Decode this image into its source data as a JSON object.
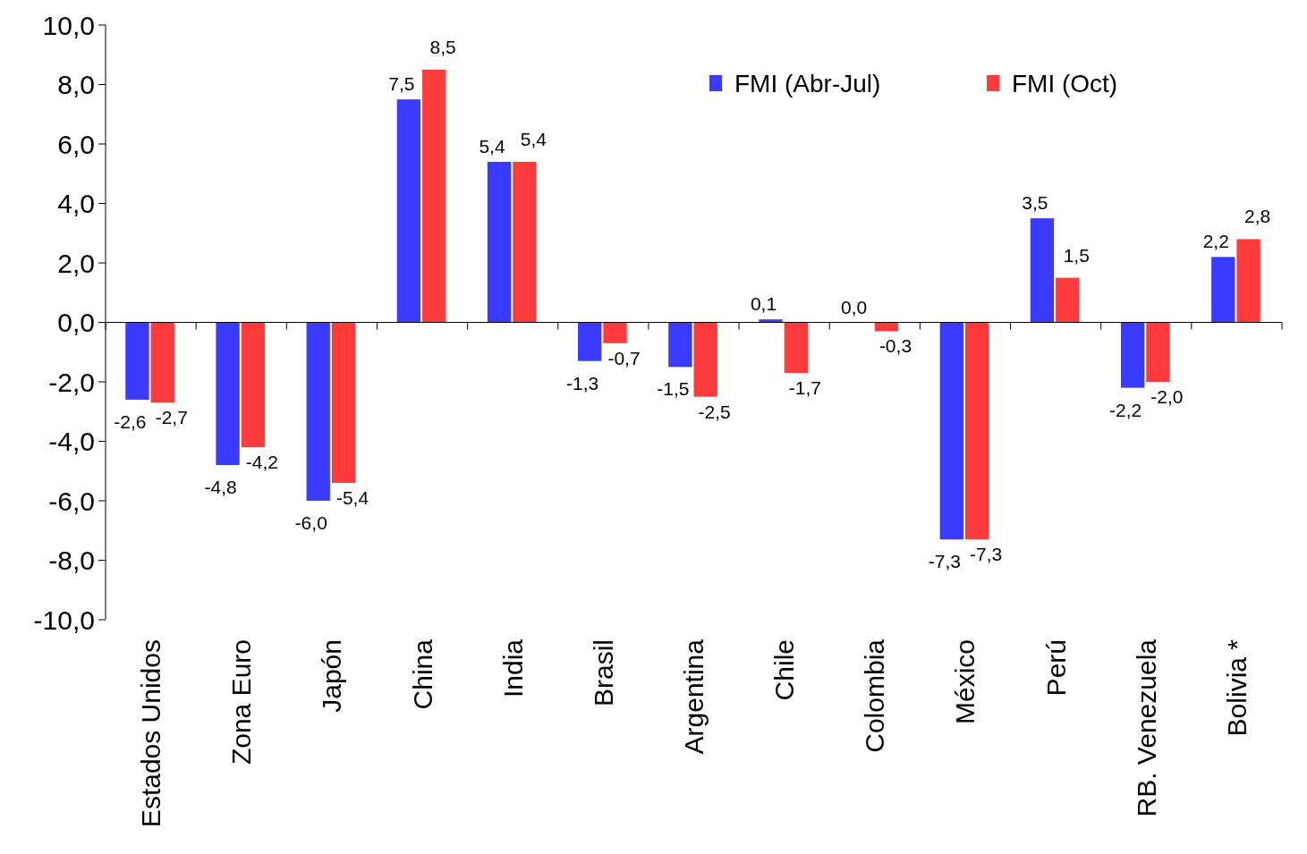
{
  "chart_data": {
    "type": "bar",
    "categories": [
      "Estados Unidos",
      "Zona Euro",
      "Japón",
      "China",
      "India",
      "Brasil",
      "Argentina",
      "Chile",
      "Colombia",
      "México",
      "Perú",
      "RB. Venezuela",
      "Bolivia *"
    ],
    "series": [
      {
        "name": "FMI (Abr-Jul)",
        "color": "#3b3bff",
        "values": [
          -2.6,
          -4.8,
          -6.0,
          7.5,
          5.4,
          -1.3,
          -1.5,
          0.1,
          0.0,
          -7.3,
          3.5,
          -2.2,
          2.2
        ],
        "value_labels": [
          "-2,6",
          "-4,8",
          "-6,0",
          "7,5",
          "5,4",
          "-1,3",
          "-1,5",
          "0,1",
          "0,0",
          "-7,3",
          "3,5",
          "-2,2",
          "2,2"
        ]
      },
      {
        "name": "FMI (Oct)",
        "color": "#ff3b3b",
        "values": [
          -2.7,
          -4.2,
          -5.4,
          8.5,
          5.4,
          -0.7,
          -2.5,
          -1.7,
          -0.3,
          -7.3,
          1.5,
          -2.0,
          2.8
        ],
        "value_labels": [
          "-2,7",
          "-4,2",
          "-5,4",
          "8,5",
          "5,4",
          "-0,7",
          "-2,5",
          "-1,7",
          "-0,3",
          "-7,3",
          "1,5",
          "-2,0",
          "2,8"
        ]
      }
    ],
    "ylim": [
      -10,
      10
    ],
    "yticks": [
      {
        "value": -10,
        "label": "-10,0"
      },
      {
        "value": -8,
        "label": "-8,0"
      },
      {
        "value": -6,
        "label": "-6,0"
      },
      {
        "value": -4,
        "label": "-4,0"
      },
      {
        "value": -2,
        "label": "-2,0"
      },
      {
        "value": 0,
        "label": "0,0"
      },
      {
        "value": 2,
        "label": "2,0"
      },
      {
        "value": 4,
        "label": "4,0"
      },
      {
        "value": 6,
        "label": "6,0"
      },
      {
        "value": 8,
        "label": "8,0"
      },
      {
        "value": 10,
        "label": "10,0"
      }
    ],
    "legend": "top right"
  }
}
